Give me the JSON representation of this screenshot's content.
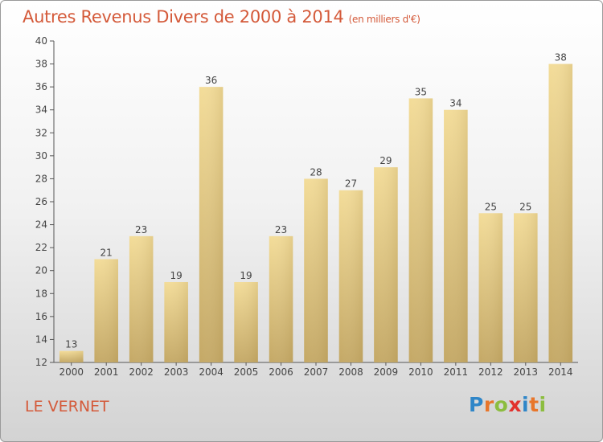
{
  "chart_data": {
    "type": "bar",
    "title": "Autres Revenus Divers de 2000 à 2014",
    "subtitle": "(en milliers d'€)",
    "xlabel": "",
    "ylabel": "",
    "categories": [
      "2000",
      "2001",
      "2002",
      "2003",
      "2004",
      "2005",
      "2006",
      "2007",
      "2008",
      "2009",
      "2010",
      "2011",
      "2012",
      "2013",
      "2014"
    ],
    "values": [
      13,
      21,
      23,
      19,
      36,
      19,
      23,
      28,
      27,
      29,
      35,
      34,
      25,
      25,
      38
    ],
    "ylim": [
      12,
      40
    ],
    "yticks": [
      12,
      14,
      16,
      18,
      20,
      22,
      24,
      26,
      28,
      30,
      32,
      34,
      36,
      38,
      40
    ],
    "grid": false,
    "bar_color": "#e6c97f",
    "title_color": "#d45a3a"
  },
  "footer": {
    "place": "LE VERNET",
    "logo_letters": [
      {
        "char": "P",
        "color": "#2f86c8"
      },
      {
        "char": "r",
        "color": "#e8762b"
      },
      {
        "char": "o",
        "color": "#8cbd3f"
      },
      {
        "char": "x",
        "color": "#e2312d"
      },
      {
        "char": "i",
        "color": "#2f86c8"
      },
      {
        "char": "t",
        "color": "#e8762b"
      },
      {
        "char": "i",
        "color": "#8cbd3f"
      }
    ]
  }
}
